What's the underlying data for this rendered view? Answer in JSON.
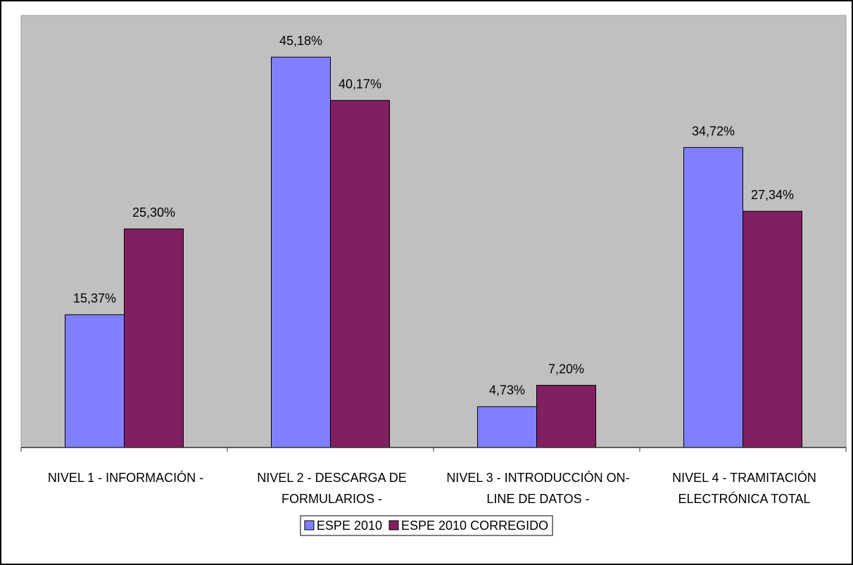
{
  "chart_data": {
    "type": "bar",
    "categories": [
      "NIVEL 1 - INFORMACIÓN -",
      "NIVEL 2 - DESCARGA DE FORMULARIOS -",
      "NIVEL 3 - INTRODUCCIÓN ON-LINE DE DATOS -",
      "NIVEL 4 - TRAMITACIÓN ELECTRÓNICA TOTAL"
    ],
    "series": [
      {
        "name": "ESPE 2010",
        "color": "#8080ff",
        "values": [
          15.37,
          45.18,
          4.73,
          34.72
        ],
        "value_labels": [
          "15,37%",
          "45,18%",
          "4,73%",
          "34,72%"
        ]
      },
      {
        "name": "ESPE 2010 CORREGIDO",
        "color": "#802060",
        "values": [
          25.3,
          40.17,
          7.2,
          27.34
        ],
        "value_labels": [
          "25,30%",
          "40,17%",
          "7,20%",
          "27,34%"
        ]
      }
    ],
    "ylim": [
      0,
      50
    ],
    "grid": false,
    "legend": "bottom"
  }
}
